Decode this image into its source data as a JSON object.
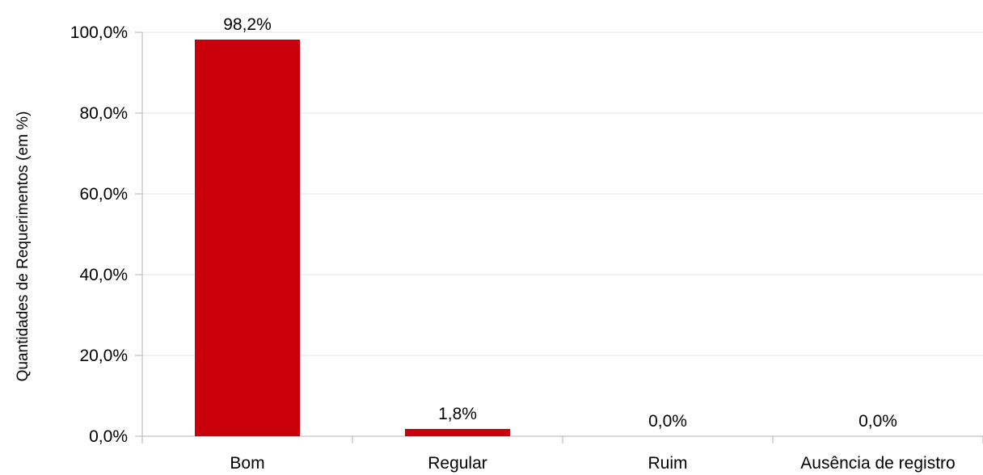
{
  "chart_data": {
    "type": "bar",
    "title": "",
    "xlabel": "",
    "ylabel": "Quantidades de Requerimentos (em %)",
    "categories": [
      "Bom",
      "Regular",
      "Ruim",
      "Ausência de registro"
    ],
    "values": [
      98.2,
      1.8,
      0.0,
      0.0
    ],
    "data_labels": [
      "98,2%",
      "1,8%",
      "0,0%",
      "0,0%"
    ],
    "ylim": [
      0,
      100
    ],
    "yticks": [
      0,
      20,
      40,
      60,
      80,
      100
    ],
    "ytick_labels": [
      "0,0%",
      "20,0%",
      "40,0%",
      "60,0%",
      "80,0%",
      "100,0%"
    ],
    "grid": true,
    "legend": "none",
    "colors": {
      "bar": "#c9000b",
      "grid": "#e6e6e6",
      "axis": "#b3b3b3"
    }
  }
}
